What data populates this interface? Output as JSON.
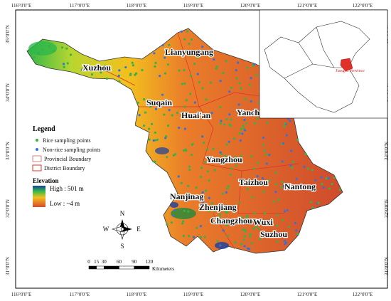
{
  "coordinates": {
    "top": [
      "116°0'0\"E",
      "117°0'0\"E",
      "118°0'0\"E",
      "119°0'0\"E",
      "120°0'0\"E",
      "121°0'0\"E",
      "122°0'0\"E"
    ],
    "bottom": [
      "116°0'0\"E",
      "117°0'0\"E",
      "118°0'0\"E",
      "119°0'0\"E",
      "120°0'0\"E",
      "121°0'0\"E",
      "122°0'0\"E"
    ],
    "left": [
      "35°0'0\"N",
      "34°0'0\"N",
      "33°0'0\"N",
      "32°0'0\"N",
      "31°0'0\"N"
    ],
    "right": [
      "35°0'0\"N",
      "34°0'0\"N",
      "33°0'0\"N",
      "32°0'0\"N",
      "31°0'0\"N"
    ]
  },
  "cities": [
    "Xuzhou",
    "Lianyungang",
    "Suqain",
    "Huai'an",
    "Yancheng",
    "Yangzhou",
    "Taizhou",
    "Nantong",
    "Nanjinag",
    "Zhenjiang",
    "Changzhou",
    "Wuxi",
    "Suzhou"
  ],
  "legend": {
    "title": "Legend",
    "items": [
      "Rice sampling points",
      "Non-rice sampling points",
      "Provincial Boundary",
      "District Boundary"
    ],
    "elevation_title": "Elevation",
    "high": "High : 501 m",
    "low": "Low : ~4 m"
  },
  "compass": {
    "n": "N",
    "s": "S",
    "w": "W",
    "e": "E"
  },
  "scale": {
    "ticks": [
      0,
      15,
      30,
      60,
      90,
      120
    ],
    "unit": "Kilometers"
  },
  "inset": {
    "label": "Jiangsu Province"
  }
}
